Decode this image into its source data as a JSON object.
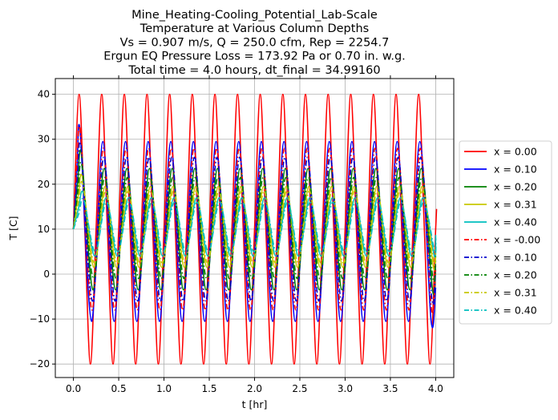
{
  "chart_data": {
    "type": "line",
    "title_lines": [
      "Mine_Heating-Cooling_Potential_Lab-Scale",
      "Temperature at Various Column Depths",
      "Vs = 0.907 m/s, Q = 250.0 cfm, Rep = 2254.7",
      "Ergun EQ Pressure Loss = 173.92 Pa or 0.70 in. w.g.",
      "Total time = 4.0 hours, dt_final = 34.99160"
    ],
    "xlabel": "t [hr]",
    "ylabel": "T [C]",
    "xlim": [
      -0.2,
      4.2
    ],
    "ylim": [
      -23,
      43.5
    ],
    "xticks": [
      0.0,
      0.5,
      1.0,
      1.5,
      2.0,
      2.5,
      3.0,
      3.5,
      4.0
    ],
    "xtick_labels": [
      "0.0",
      "0.5",
      "1.0",
      "1.5",
      "2.0",
      "2.5",
      "3.0",
      "3.5",
      "4.0"
    ],
    "yticks": [
      -20,
      -10,
      0,
      10,
      20,
      30,
      40
    ],
    "ytick_labels": [
      "−20",
      "−10",
      "0",
      "10",
      "20",
      "30",
      "40"
    ],
    "grid": true,
    "legend_position": "outside-right",
    "period_hr": 0.25,
    "series": [
      {
        "name": "x = 0.00",
        "color": "#ff0000",
        "linestyle": "solid",
        "x": [
          0.0,
          0.0625,
          0.125,
          0.1875,
          0.25,
          0.3125,
          0.375,
          0.4375,
          0.5,
          0.5625,
          0.625,
          0.6875,
          0.75,
          0.8125,
          0.875,
          0.9375,
          1.0,
          1.0625,
          1.125,
          1.1875,
          1.25,
          1.3125,
          1.375,
          1.4375,
          1.5,
          1.5625,
          1.625,
          1.6875,
          1.75,
          1.8125,
          1.875,
          1.9375,
          2.0,
          2.0625,
          2.125,
          2.1875,
          2.25,
          2.3125,
          2.375,
          2.4375,
          2.5,
          2.5625,
          2.625,
          2.6875,
          2.75,
          2.8125,
          2.875,
          2.9375,
          3.0,
          3.0625,
          3.125,
          3.1875,
          3.25,
          3.3125,
          3.375,
          3.4375,
          3.5,
          3.5625,
          3.625,
          3.6875,
          3.75,
          3.8125,
          3.875,
          3.9375,
          4.0,
          4.01
        ],
        "y": [
          10,
          40,
          10,
          -20,
          10,
          40,
          10,
          -20,
          10,
          40,
          10,
          -20,
          10,
          40,
          10,
          -20,
          10,
          40,
          10,
          -20,
          10,
          40,
          10,
          -20,
          10,
          40,
          10,
          -20,
          10,
          40,
          10,
          -20,
          10,
          40,
          10,
          -20,
          10,
          40,
          10,
          -20,
          10,
          40,
          10,
          -20,
          10,
          40,
          10,
          -20,
          10,
          40,
          10,
          -20,
          10,
          40,
          10,
          -20,
          10,
          40,
          10,
          -20,
          10,
          40,
          10,
          -20,
          10,
          14.5
        ]
      },
      {
        "name": "x = 0.10",
        "color": "#0000ff",
        "linestyle": "solid",
        "x": [
          0.0,
          0.04,
          0.075,
          0.2,
          0.325,
          0.45,
          0.575,
          0.7,
          0.825,
          0.95,
          1.075,
          1.2,
          1.325,
          1.45,
          1.575,
          1.7,
          1.825,
          1.95,
          2.075,
          2.2,
          2.325,
          2.45,
          2.575,
          2.7,
          2.825,
          2.95,
          3.075,
          3.2,
          3.325,
          3.45,
          3.575,
          3.7,
          3.825,
          3.95,
          4.0
        ],
        "y": [
          10,
          24,
          31.5,
          -10.5,
          29.5,
          -10.5,
          29.5,
          -10.5,
          29.5,
          -10.5,
          29.5,
          -10.5,
          29.5,
          -10.5,
          29.5,
          -10.5,
          29.5,
          -10.5,
          29.5,
          -10.5,
          29.5,
          -10.5,
          29.5,
          -10.5,
          29.5,
          -10.5,
          29.5,
          -10.5,
          29.5,
          -10.5,
          29.5,
          -10.5,
          29.5,
          -10.5,
          -3
        ]
      },
      {
        "name": "x = 0.20",
        "color": "#008000",
        "linestyle": "solid",
        "x": [
          0.0,
          0.045,
          0.09,
          0.215,
          0.34,
          0.465,
          0.59,
          0.715,
          0.84,
          0.965,
          1.09,
          1.215,
          1.34,
          1.465,
          1.59,
          1.715,
          1.84,
          1.965,
          2.09,
          2.215,
          2.34,
          2.465,
          2.59,
          2.715,
          2.84,
          2.965,
          3.09,
          3.215,
          3.34,
          3.465,
          3.59,
          3.715,
          3.84,
          3.965,
          4.0
        ],
        "y": [
          10,
          20,
          26.5,
          -3.5,
          23.5,
          -3.5,
          23.5,
          -3.5,
          23.5,
          -3.5,
          23.5,
          -3.5,
          23.5,
          -3.5,
          23.5,
          -3.5,
          23.5,
          -3.5,
          23.5,
          -3.5,
          23.5,
          -3.5,
          23.5,
          -3.5,
          23.5,
          -3.5,
          23.5,
          -3.5,
          23.5,
          -3.5,
          23.5,
          -3.5,
          23.5,
          -3.5,
          1
        ]
      },
      {
        "name": "x = 0.31",
        "color": "#c8c800",
        "linestyle": "solid",
        "x": [
          0.0,
          0.05,
          0.1,
          0.225,
          0.35,
          0.475,
          0.6,
          0.725,
          0.85,
          0.975,
          1.1,
          1.225,
          1.35,
          1.475,
          1.6,
          1.725,
          1.85,
          1.975,
          2.1,
          2.225,
          2.35,
          2.475,
          2.6,
          2.725,
          2.85,
          2.975,
          3.1,
          3.225,
          3.35,
          3.475,
          3.6,
          3.725,
          3.85,
          3.975,
          4.0
        ],
        "y": [
          10,
          17,
          21.5,
          1.5,
          19.5,
          1.5,
          19.5,
          1.5,
          19.5,
          1.5,
          19.5,
          1.5,
          19.5,
          1.5,
          19.5,
          1.5,
          19.5,
          1.5,
          19.5,
          1.5,
          19.5,
          1.5,
          19.5,
          1.5,
          19.5,
          1.5,
          19.5,
          1.5,
          19.5,
          1.5,
          19.5,
          1.5,
          19.5,
          1.5,
          5
        ]
      },
      {
        "name": "x = 0.40",
        "color": "#00bfbf",
        "linestyle": "solid",
        "x": [
          0.0,
          0.055,
          0.11,
          0.235,
          0.36,
          0.485,
          0.61,
          0.735,
          0.86,
          0.985,
          1.11,
          1.235,
          1.36,
          1.485,
          1.61,
          1.735,
          1.86,
          1.985,
          2.11,
          2.235,
          2.36,
          2.485,
          2.61,
          2.735,
          2.86,
          2.985,
          3.11,
          3.235,
          3.36,
          3.485,
          3.61,
          3.735,
          3.86,
          3.985,
          4.0
        ],
        "y": [
          10,
          14.5,
          18,
          4,
          17,
          4,
          17,
          4,
          17,
          4,
          17,
          4,
          17,
          4,
          17,
          4,
          17,
          4,
          17,
          4,
          17,
          4,
          17,
          4,
          17,
          4,
          17,
          4,
          17,
          4,
          17,
          4,
          17,
          4,
          8
        ]
      },
      {
        "name": "x = -0.00",
        "color": "#ff0000",
        "linestyle": "dashdot",
        "x": [
          0.0,
          0.04,
          0.08,
          0.205,
          0.33,
          0.455,
          0.58,
          0.705,
          0.83,
          0.955,
          1.08,
          1.205,
          1.33,
          1.455,
          1.58,
          1.705,
          1.83,
          1.955,
          2.08,
          2.205,
          2.33,
          2.455,
          2.58,
          2.705,
          2.83,
          2.955,
          3.08,
          3.205,
          3.33,
          3.455,
          3.58,
          3.705,
          3.83,
          3.955,
          4.0
        ],
        "y": [
          10,
          25,
          31,
          -8,
          28,
          -8,
          28,
          -8,
          28,
          -8,
          28,
          -8,
          28,
          -8,
          28,
          -8,
          28,
          -8,
          28,
          -8,
          28,
          -8,
          28,
          -8,
          28,
          -8,
          28,
          -8,
          28,
          -8,
          28,
          -8,
          28,
          -8,
          2
        ]
      },
      {
        "name": "x = 0.10",
        "color": "#0000cc",
        "linestyle": "dashdot",
        "x": [
          0.0,
          0.045,
          0.085,
          0.21,
          0.335,
          0.46,
          0.585,
          0.71,
          0.835,
          0.96,
          1.085,
          1.21,
          1.335,
          1.46,
          1.585,
          1.71,
          1.835,
          1.96,
          2.085,
          2.21,
          2.335,
          2.46,
          2.585,
          2.71,
          2.835,
          2.96,
          3.085,
          3.21,
          3.335,
          3.46,
          3.585,
          3.71,
          3.835,
          3.96,
          4.0
        ],
        "y": [
          10,
          22,
          28,
          -6,
          26,
          -6,
          26,
          -6,
          26,
          -6,
          26,
          -6,
          26,
          -6,
          26,
          -6,
          26,
          -6,
          26,
          -6,
          26,
          -6,
          26,
          -6,
          26,
          -6,
          26,
          -6,
          26,
          -6,
          26,
          -6,
          26,
          -6,
          3
        ]
      },
      {
        "name": "x = 0.20",
        "color": "#008000",
        "linestyle": "dashdot",
        "x": [
          0.0,
          0.05,
          0.095,
          0.22,
          0.345,
          0.47,
          0.595,
          0.72,
          0.845,
          0.97,
          1.095,
          1.22,
          1.345,
          1.47,
          1.595,
          1.72,
          1.845,
          1.97,
          2.095,
          2.22,
          2.345,
          2.47,
          2.595,
          2.72,
          2.845,
          2.97,
          3.095,
          3.22,
          3.345,
          3.47,
          3.595,
          3.72,
          3.845,
          3.97,
          4.0
        ],
        "y": [
          10,
          18.5,
          24,
          -1,
          21.5,
          -1,
          21.5,
          -1,
          21.5,
          -1,
          21.5,
          -1,
          21.5,
          -1,
          21.5,
          -1,
          21.5,
          -1,
          21.5,
          -1,
          21.5,
          -1,
          21.5,
          -1,
          21.5,
          -1,
          21.5,
          -1,
          21.5,
          -1,
          21.5,
          -1,
          21.5,
          -1,
          4
        ]
      },
      {
        "name": "x = 0.31",
        "color": "#c8c800",
        "linestyle": "dashdot",
        "x": [
          0.0,
          0.055,
          0.105,
          0.23,
          0.355,
          0.48,
          0.605,
          0.73,
          0.855,
          0.98,
          1.105,
          1.23,
          1.355,
          1.48,
          1.605,
          1.73,
          1.855,
          1.98,
          2.105,
          2.23,
          2.355,
          2.48,
          2.605,
          2.73,
          2.855,
          2.98,
          3.105,
          3.23,
          3.355,
          3.48,
          3.605,
          3.73,
          3.855,
          3.98,
          4.0
        ],
        "y": [
          10,
          16,
          20,
          2.5,
          18.5,
          2.5,
          18.5,
          2.5,
          18.5,
          2.5,
          18.5,
          2.5,
          18.5,
          2.5,
          18.5,
          2.5,
          18.5,
          2.5,
          18.5,
          2.5,
          18.5,
          2.5,
          18.5,
          2.5,
          18.5,
          2.5,
          18.5,
          2.5,
          18.5,
          2.5,
          18.5,
          2.5,
          18.5,
          2.5,
          6
        ]
      },
      {
        "name": "x = 0.40",
        "color": "#00bfbf",
        "linestyle": "dashdot",
        "x": [
          0.0,
          0.06,
          0.115,
          0.24,
          0.365,
          0.49,
          0.615,
          0.74,
          0.865,
          0.99,
          1.115,
          1.24,
          1.365,
          1.49,
          1.615,
          1.74,
          1.865,
          1.99,
          2.115,
          2.24,
          2.365,
          2.49,
          2.615,
          2.74,
          2.865,
          2.99,
          3.115,
          3.24,
          3.365,
          3.49,
          3.615,
          3.74,
          3.865,
          3.99,
          4.0
        ],
        "y": [
          10,
          13.5,
          16.5,
          5,
          16,
          5,
          16,
          5,
          16,
          5,
          16,
          5,
          16,
          5,
          16,
          5,
          16,
          5,
          16,
          5,
          16,
          5,
          16,
          5,
          16,
          5,
          16,
          5,
          16,
          5,
          16,
          5,
          16,
          5,
          9
        ]
      }
    ]
  }
}
